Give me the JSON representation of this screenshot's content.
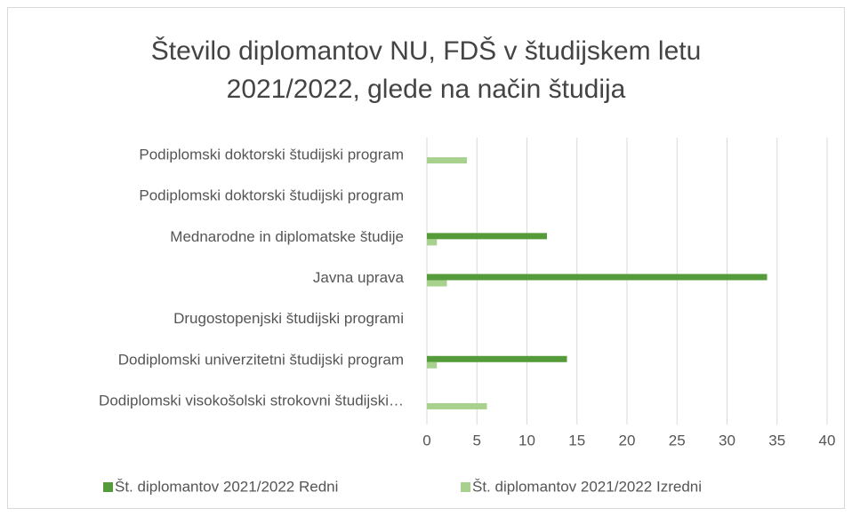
{
  "chart_data": {
    "type": "bar",
    "orientation": "horizontal",
    "title": "Število diplomantov NU, FDŠ v študijskem letu 2021/2022, glede na način študija",
    "categories": [
      "Dodiplomski visokošolski strokovni študijski…",
      "Dodiplomski univerzitetni študijski program",
      "Drugostopenjski študijski programi",
      "Javna uprava",
      "Mednarodne in diplomatske študije",
      "Podiplomski doktorski študijski program",
      "Podiplomski doktorski študijski program"
    ],
    "series": [
      {
        "name": "Št. diplomantov 2021/2022 Redni",
        "color": "#559b3a",
        "values": [
          0,
          14,
          0,
          34,
          12,
          0,
          0
        ]
      },
      {
        "name": "Št. diplomantov 2021/2022 Izredni",
        "color": "#a9d18e",
        "values": [
          6,
          1,
          0,
          2,
          1,
          0,
          4
        ]
      }
    ],
    "xlim": [
      0,
      40
    ],
    "xticks": [
      0,
      5,
      10,
      15,
      20,
      25,
      30,
      35,
      40
    ],
    "grid": true,
    "legend": "bottom"
  }
}
